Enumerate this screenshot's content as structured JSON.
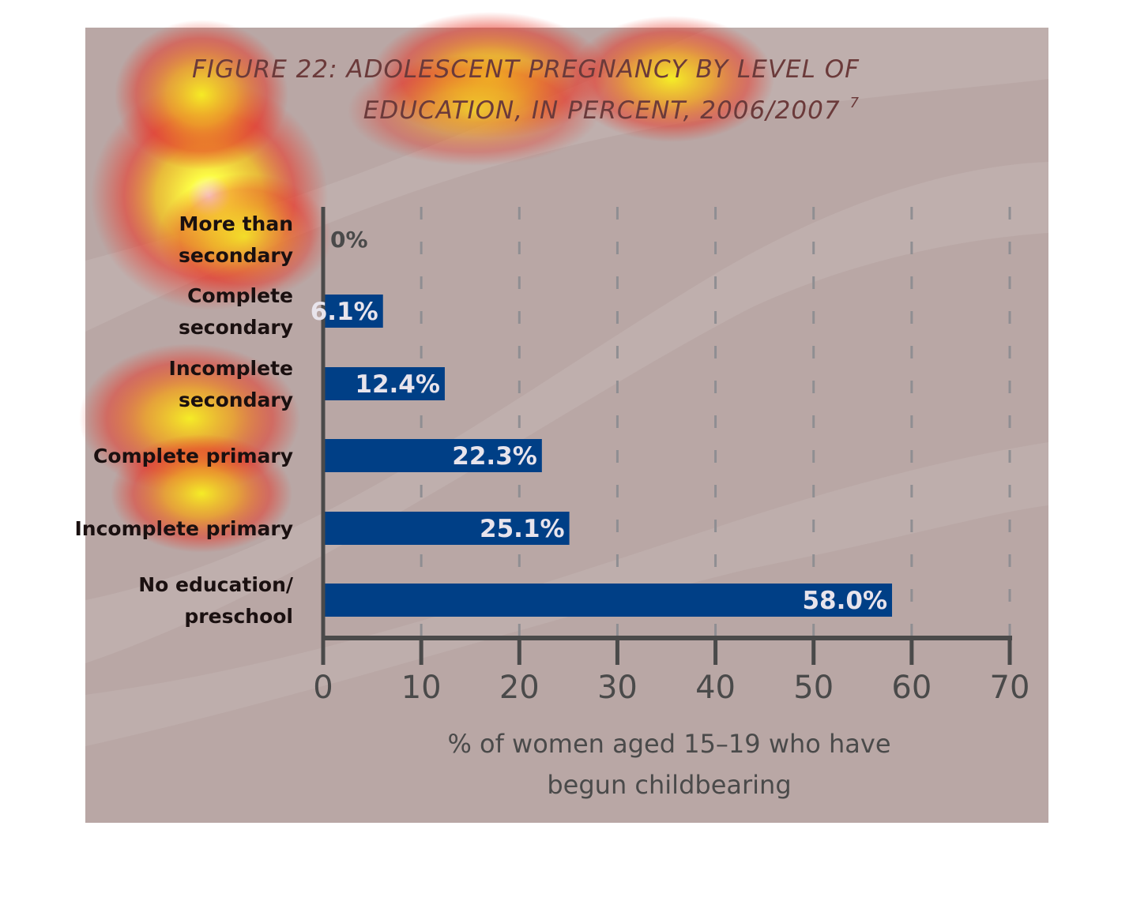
{
  "chart_data": {
    "type": "bar",
    "orientation": "horizontal",
    "title": {
      "line1": "FIGURE 22: ADOLESCENT PREGNANCY BY LEVEL OF",
      "line2": "EDUCATION, IN PERCENT, 2006/2007",
      "footnote": "7"
    },
    "categories": [
      [
        "More than",
        "secondary"
      ],
      [
        "Complete",
        "secondary"
      ],
      [
        "Incomplete",
        "secondary"
      ],
      [
        "Complete primary"
      ],
      [
        "Incomplete primary"
      ],
      [
        "No education/",
        "preschool"
      ]
    ],
    "values": [
      0,
      6.1,
      12.4,
      22.3,
      25.1,
      58.0
    ],
    "value_labels": [
      "0%",
      "6.1%",
      "12.4%",
      "22.3%",
      "25.1%",
      "58.0%"
    ],
    "xlim": [
      0,
      70
    ],
    "xticks": [
      0,
      10,
      20,
      30,
      40,
      50,
      60,
      70
    ],
    "xlabel": [
      "% of women aged 15–19 who have",
      "begun childbearing"
    ],
    "ylabel": "",
    "grid": "vertical dashed",
    "legend": "none",
    "colors": {
      "bar": "#003f86",
      "background": "#b9a7a5",
      "axis": "#4a4a4a",
      "title": "#6b3a3a"
    },
    "heatmap_overlay": "eye-tracking heat spots in red/yellow over title and category labels"
  }
}
